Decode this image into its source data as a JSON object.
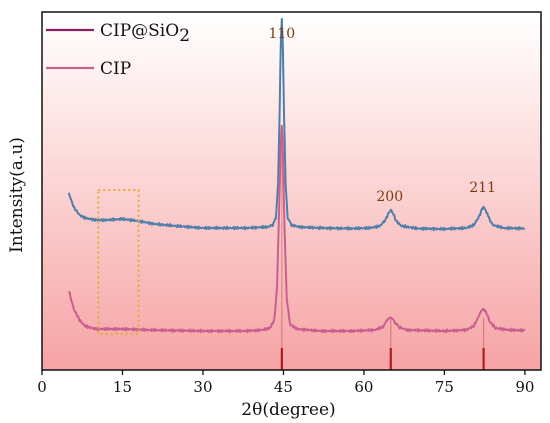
{
  "chart_data": {
    "type": "line",
    "title": "",
    "xlabel": "2θ(degree)",
    "ylabel": "Intensity(a.u)",
    "xlim": [
      0,
      93
    ],
    "x_ticks": [
      0,
      15,
      30,
      45,
      60,
      75,
      90
    ],
    "x_tick_labels": [
      "0",
      "15",
      "30",
      "45",
      "60",
      "75",
      "90"
    ],
    "y_ticks_shown": false,
    "grid": false,
    "legend": {
      "position": "top-left"
    },
    "background": {
      "top_color": "#ffffff",
      "bottom_color": "#f6a3a4"
    },
    "highlight_box": {
      "x_range": [
        10.5,
        18
      ],
      "color": "#d9b135",
      "style": "dotted"
    },
    "peak_labels": [
      {
        "x": 44.7,
        "text": "110"
      },
      {
        "x": 65.0,
        "text": "200"
      },
      {
        "x": 82.3,
        "text": "211"
      }
    ],
    "reference_lines": [
      {
        "x": 44.7,
        "color": "#b31b1b"
      },
      {
        "x": 65.0,
        "color": "#b31b1b"
      },
      {
        "x": 82.3,
        "color": "#b31b1b"
      }
    ],
    "series": [
      {
        "name": "CIP@SiO2",
        "legend_label": "CIP@SiO",
        "legend_subscript": "2",
        "color": "#4f7fa8",
        "legend_color": "#8a2060",
        "points": [
          [
            5,
            60
          ],
          [
            5.5,
            52
          ],
          [
            6,
            45
          ],
          [
            7,
            38
          ],
          [
            8,
            35
          ],
          [
            10,
            33
          ],
          [
            12,
            33
          ],
          [
            15,
            34
          ],
          [
            18,
            32
          ],
          [
            21,
            29
          ],
          [
            25,
            27
          ],
          [
            30,
            25
          ],
          [
            35,
            25
          ],
          [
            38,
            25
          ],
          [
            40,
            25.5
          ],
          [
            42,
            26
          ],
          [
            43,
            28
          ],
          [
            43.6,
            35
          ],
          [
            44.0,
            70
          ],
          [
            44.3,
            145
          ],
          [
            44.5,
            210
          ],
          [
            44.7,
            235
          ],
          [
            44.9,
            205
          ],
          [
            45.1,
            140
          ],
          [
            45.4,
            70
          ],
          [
            45.8,
            35
          ],
          [
            46.5,
            28
          ],
          [
            48,
            26
          ],
          [
            52,
            25
          ],
          [
            58,
            24.5
          ],
          [
            61,
            25
          ],
          [
            63,
            27
          ],
          [
            64,
            33
          ],
          [
            64.5,
            39
          ],
          [
            65,
            43
          ],
          [
            65.5,
            39
          ],
          [
            66,
            32
          ],
          [
            67,
            27
          ],
          [
            70,
            24.5
          ],
          [
            75,
            24
          ],
          [
            79,
            25
          ],
          [
            80.5,
            28
          ],
          [
            81.5,
            37
          ],
          [
            82,
            44
          ],
          [
            82.3,
            46
          ],
          [
            82.7,
            43
          ],
          [
            83.3,
            35
          ],
          [
            84,
            28
          ],
          [
            86,
            25
          ],
          [
            90,
            24.5
          ]
        ]
      },
      {
        "name": "CIP",
        "legend_label": "CIP",
        "legend_subscript": "",
        "color": "#c95f8f",
        "legend_color": "#c95f8f",
        "points": [
          [
            5,
            58
          ],
          [
            5.5,
            47
          ],
          [
            6,
            38
          ],
          [
            7,
            28
          ],
          [
            8,
            22
          ],
          [
            10,
            19
          ],
          [
            15,
            19
          ],
          [
            20,
            18
          ],
          [
            30,
            17
          ],
          [
            38,
            17
          ],
          [
            41,
            18
          ],
          [
            42.5,
            20
          ],
          [
            43.3,
            28
          ],
          [
            43.8,
            60
          ],
          [
            44.2,
            140
          ],
          [
            44.5,
            205
          ],
          [
            44.7,
            222
          ],
          [
            44.9,
            195
          ],
          [
            45.2,
            120
          ],
          [
            45.6,
            50
          ],
          [
            46.2,
            24
          ],
          [
            47.5,
            19
          ],
          [
            52,
            17
          ],
          [
            58,
            17
          ],
          [
            62,
            18
          ],
          [
            63.5,
            21
          ],
          [
            64.4,
            28
          ],
          [
            65,
            31
          ],
          [
            65.6,
            27
          ],
          [
            66.5,
            21
          ],
          [
            68,
            18
          ],
          [
            75,
            17
          ],
          [
            79,
            18
          ],
          [
            80.5,
            22
          ],
          [
            81.5,
            33
          ],
          [
            82.2,
            40
          ],
          [
            82.8,
            35
          ],
          [
            83.5,
            26
          ],
          [
            84.5,
            20
          ],
          [
            87,
            18
          ],
          [
            90,
            17.5
          ]
        ]
      }
    ]
  }
}
